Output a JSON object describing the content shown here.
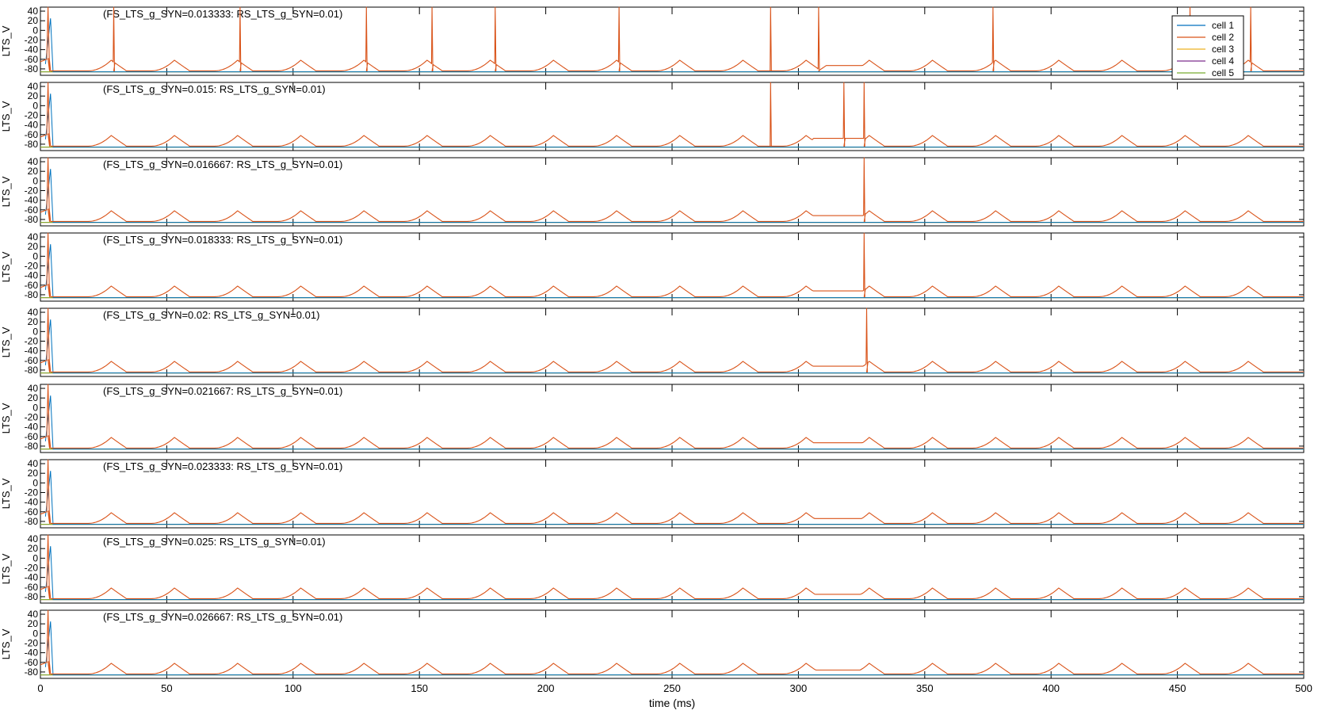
{
  "chart_data": {
    "type": "line",
    "xlabel": "time (ms)",
    "ylabel": "LTS_V",
    "xlim": [
      0,
      500
    ],
    "ylim": [
      -90,
      45
    ],
    "xticks": [
      0,
      50,
      100,
      150,
      200,
      250,
      300,
      350,
      400,
      450,
      500
    ],
    "yticks": [
      40,
      20,
      0,
      -20,
      -40,
      -60,
      -80
    ],
    "legend": {
      "placement": "top-right",
      "entries": [
        {
          "name": "cell 1",
          "color": "#0072BD"
        },
        {
          "name": "cell 2",
          "color": "#D95319"
        },
        {
          "name": "cell 3",
          "color": "#EDB120"
        },
        {
          "name": "cell 4",
          "color": "#7E2F8E"
        },
        {
          "name": "cell 5",
          "color": "#77AC30"
        }
      ]
    },
    "background_peak_times": [
      28,
      53,
      78,
      103,
      128,
      153,
      178,
      203,
      228,
      253,
      278,
      303,
      328,
      353,
      378,
      403,
      428,
      453,
      478
    ],
    "panels": [
      {
        "title": "(FS_LTS_g_SYN=0.013333: RS_LTS_g_SYN=0.01)",
        "spikes": [
          29,
          79,
          129,
          155,
          180,
          229,
          289,
          308,
          377,
          455,
          479
        ],
        "plateau": [
          308,
          326,
          -73
        ]
      },
      {
        "title": "(FS_LTS_g_SYN=0.015: RS_LTS_g_SYN=0.01)",
        "spikes": [
          289,
          318,
          326
        ],
        "plateau": [
          303,
          326,
          -68
        ]
      },
      {
        "title": "(FS_LTS_g_SYN=0.016667: RS_LTS_g_SYN=0.01)",
        "spikes": [
          326
        ],
        "plateau": [
          302,
          326,
          -72
        ]
      },
      {
        "title": "(FS_LTS_g_SYN=0.018333: RS_LTS_g_SYN=0.01)",
        "spikes": [
          326
        ],
        "plateau": [
          302,
          326,
          -72
        ]
      },
      {
        "title": "(FS_LTS_g_SYN=0.02: RS_LTS_g_SYN=0.01)",
        "spikes": [
          327
        ],
        "plateau": [
          302,
          326,
          -72
        ]
      },
      {
        "title": "(FS_LTS_g_SYN=0.021667: RS_LTS_g_SYN=0.01)",
        "spikes": [],
        "plateau": [
          302,
          326,
          -73
        ]
      },
      {
        "title": "(FS_LTS_g_SYN=0.023333: RS_LTS_g_SYN=0.01)",
        "spikes": [],
        "plateau": [
          302,
          326,
          -74
        ]
      },
      {
        "title": "(FS_LTS_g_SYN=0.025: RS_LTS_g_SYN=0.01)",
        "spikes": [],
        "plateau": [
          302,
          326,
          -75
        ]
      },
      {
        "title": "(FS_LTS_g_SYN=0.026667: RS_LTS_g_SYN=0.01)",
        "spikes": [],
        "plateau": [
          302,
          326,
          -76
        ]
      }
    ]
  }
}
